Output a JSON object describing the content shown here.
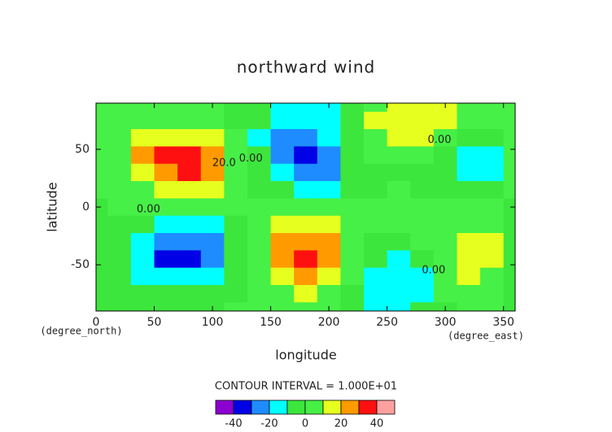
{
  "chart_data": {
    "type": "contour",
    "title": "northward wind",
    "x_label": "longitude",
    "y_label": "latitude",
    "x_unit": "(degree_east)",
    "y_unit": "(degree_north)",
    "contour_interval": "CONTOUR INTERVAL = 1.000E+01",
    "xlim": [
      0,
      360
    ],
    "ylim": [
      -90,
      90
    ],
    "xticks": [
      0,
      50,
      100,
      150,
      200,
      250,
      300,
      350
    ],
    "yticks": [
      -50,
      0,
      50
    ],
    "x": [
      0,
      20,
      40,
      60,
      80,
      100,
      120,
      140,
      160,
      180,
      200,
      220,
      240,
      260,
      280,
      300,
      320,
      340,
      360
    ],
    "y": [
      90,
      75,
      60,
      45,
      30,
      15,
      0,
      -15,
      -30,
      -45,
      -60,
      -75,
      -90
    ],
    "z": [
      [
        2,
        3,
        4,
        5,
        4,
        2,
        -3,
        -9,
        -12,
        -12,
        -11,
        -6,
        8,
        12,
        13,
        11,
        6,
        3,
        2
      ],
      [
        3,
        5,
        8,
        9,
        8,
        5,
        -2,
        -10,
        -16,
        -18,
        -15,
        -6,
        10,
        14,
        15,
        12,
        5,
        2,
        3
      ],
      [
        4,
        8,
        14,
        18,
        18,
        14,
        4,
        -12,
        -22,
        -24,
        -20,
        -8,
        8,
        13,
        14,
        9,
        -4,
        -8,
        4
      ],
      [
        3,
        8,
        20,
        32,
        36,
        26,
        8,
        -10,
        -24,
        -34,
        -28,
        -10,
        2,
        3,
        0,
        -8,
        -15,
        -14,
        3
      ],
      [
        2,
        6,
        16,
        26,
        30,
        22,
        8,
        -8,
        -20,
        -28,
        -26,
        -10,
        -2,
        -1,
        -2,
        -8,
        -14,
        -12,
        2
      ],
      [
        1,
        4,
        9,
        13,
        14,
        11,
        5,
        -4,
        -10,
        -14,
        -12,
        -6,
        -1,
        0,
        -1,
        -4,
        -6,
        -5,
        1
      ],
      [
        -1,
        0,
        1,
        1,
        1,
        1,
        0,
        0,
        0,
        0,
        0,
        0,
        0,
        0,
        0,
        0,
        0,
        0,
        -1
      ],
      [
        -1,
        -4,
        -9,
        -13,
        -14,
        -11,
        -5,
        4,
        10,
        14,
        12,
        6,
        1,
        0,
        1,
        4,
        6,
        5,
        -1
      ],
      [
        -2,
        -6,
        -16,
        -26,
        -30,
        -22,
        -8,
        8,
        20,
        26,
        22,
        8,
        -2,
        -4,
        0,
        6,
        12,
        11,
        -2
      ],
      [
        -3,
        -8,
        -20,
        -32,
        -36,
        -26,
        -8,
        8,
        22,
        30,
        24,
        6,
        -8,
        -12,
        -6,
        6,
        14,
        14,
        -3
      ],
      [
        -4,
        -8,
        -14,
        -18,
        -18,
        -14,
        -4,
        6,
        16,
        20,
        14,
        0,
        -14,
        -18,
        -12,
        4,
        10,
        8,
        -4
      ],
      [
        -3,
        -5,
        -8,
        -9,
        -8,
        -5,
        -2,
        4,
        8,
        10,
        4,
        -6,
        -14,
        -16,
        -12,
        0,
        4,
        2,
        -3
      ],
      [
        -2,
        -3,
        -4,
        -4,
        -4,
        -2,
        0,
        2,
        4,
        4,
        0,
        -6,
        -12,
        -14,
        -10,
        -2,
        1,
        0,
        -2
      ]
    ],
    "levels": [
      -50,
      -40,
      -30,
      -20,
      -10,
      0,
      10,
      20,
      30,
      40,
      50
    ],
    "colors": [
      "#8c00d2",
      "#0000e6",
      "#1e8cff",
      "#00ffff",
      "#3ce63c",
      "#46f046",
      "#e6ff1e",
      "#ff9a00",
      "#ff1010",
      "#ffa0a0"
    ],
    "colorbar_ticks": [
      -40,
      -20,
      0,
      20,
      40
    ],
    "annotations": [
      {
        "text": "0.00",
        "x": 45,
        "y": -2
      },
      {
        "text": "20.0",
        "x": 110,
        "y": 38
      },
      {
        "text": "0.00",
        "x": 133,
        "y": 42
      },
      {
        "text": "0.00",
        "x": 295,
        "y": 58
      },
      {
        "text": "0.00",
        "x": 290,
        "y": -55
      }
    ]
  }
}
